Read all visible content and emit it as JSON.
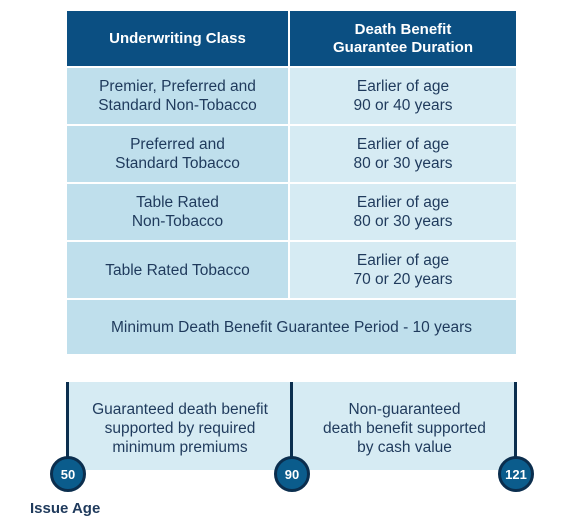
{
  "table": {
    "header": {
      "col1": "Underwriting Class",
      "col2": "Death Benefit\nGuarantee Duration"
    },
    "rows": [
      {
        "class": "Premier, Preferred and\nStandard Non-Tobacco",
        "duration": "Earlier of age\n90 or 40 years"
      },
      {
        "class": "Preferred and\nStandard Tobacco",
        "duration": "Earlier of age\n80 or 30 years"
      },
      {
        "class": "Table Rated\nNon-Tobacco",
        "duration": "Earlier of age\n80 or 30 years"
      },
      {
        "class": "Table Rated Tobacco",
        "duration": "Earlier of age\n70 or 20 years"
      }
    ],
    "footer": "Minimum Death Benefit Guarantee Period - 10 years"
  },
  "timeline": {
    "segment_guaranteed": "Guaranteed death benefit\nsupported by required\nminimum premiums",
    "segment_non_guaranteed": "Non-guaranteed\ndeath benefit supported\nby cash value",
    "ages": [
      "50",
      "90",
      "121"
    ],
    "axis_label": "Issue Age"
  },
  "colors": {
    "header_blue": "#0b4f82",
    "light_blue": "#bfdfec",
    "lighter_blue": "#d6ebf3",
    "navy": "#0b2e4e"
  }
}
